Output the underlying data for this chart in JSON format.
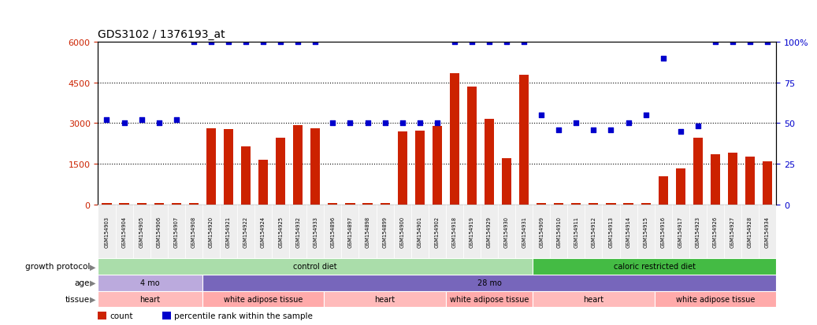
{
  "title": "GDS3102 / 1376193_at",
  "samples": [
    "GSM154903",
    "GSM154904",
    "GSM154905",
    "GSM154906",
    "GSM154907",
    "GSM154908",
    "GSM154920",
    "GSM154921",
    "GSM154922",
    "GSM154924",
    "GSM154925",
    "GSM154932",
    "GSM154933",
    "GSM154896",
    "GSM154897",
    "GSM154898",
    "GSM154899",
    "GSM154900",
    "GSM154901",
    "GSM154902",
    "GSM154918",
    "GSM154919",
    "GSM154929",
    "GSM154930",
    "GSM154931",
    "GSM154909",
    "GSM154910",
    "GSM154911",
    "GSM154912",
    "GSM154913",
    "GSM154914",
    "GSM154915",
    "GSM154916",
    "GSM154917",
    "GSM154923",
    "GSM154926",
    "GSM154927",
    "GSM154928",
    "GSM154934"
  ],
  "bar_values": [
    50,
    60,
    55,
    60,
    55,
    60,
    2820,
    2780,
    2150,
    1650,
    2450,
    2920,
    2800,
    50,
    50,
    50,
    50,
    2680,
    2720,
    2900,
    4830,
    4350,
    3150,
    1700,
    4780,
    50,
    50,
    50,
    50,
    50,
    50,
    50,
    1050,
    1330,
    2450,
    1850,
    1900,
    1750,
    1600
  ],
  "dot_percentiles": [
    52,
    50,
    52,
    50,
    52,
    100,
    100,
    100,
    100,
    100,
    100,
    100,
    100,
    50,
    50,
    50,
    50,
    50,
    50,
    50,
    100,
    100,
    100,
    100,
    100,
    55,
    46,
    50,
    46,
    46,
    50,
    55,
    90,
    45,
    48,
    100,
    100,
    100,
    100
  ],
  "ylim_left": [
    0,
    6000
  ],
  "ylim_right": [
    0,
    100
  ],
  "yticks_left": [
    0,
    1500,
    3000,
    4500,
    6000
  ],
  "yticks_right": [
    0,
    25,
    50,
    75,
    100
  ],
  "bar_color": "#CC2200",
  "dot_color": "#0000CC",
  "groups_gp": [
    {
      "label": "control diet",
      "start": 0,
      "end": 25,
      "color": "#AADDAA"
    },
    {
      "label": "caloric restricted diet",
      "start": 25,
      "end": 39,
      "color": "#44BB44"
    }
  ],
  "groups_age": [
    {
      "label": "4 mo",
      "start": 0,
      "end": 6,
      "color": "#BBAADD"
    },
    {
      "label": "28 mo",
      "start": 6,
      "end": 39,
      "color": "#7766BB"
    }
  ],
  "groups_tissue": [
    {
      "label": "heart",
      "start": 0,
      "end": 6,
      "color": "#FFBBBB"
    },
    {
      "label": "white adipose tissue",
      "start": 6,
      "end": 13,
      "color": "#FFAAAA"
    },
    {
      "label": "heart",
      "start": 13,
      "end": 20,
      "color": "#FFBBBB"
    },
    {
      "label": "white adipose tissue",
      "start": 20,
      "end": 25,
      "color": "#FFAAAA"
    },
    {
      "label": "heart",
      "start": 25,
      "end": 32,
      "color": "#FFBBBB"
    },
    {
      "label": "white adipose tissue",
      "start": 32,
      "end": 39,
      "color": "#FFAAAA"
    }
  ],
  "row_labels": [
    "growth protocol",
    "age",
    "tissue"
  ],
  "legend_items": [
    {
      "color": "#CC2200",
      "label": "count"
    },
    {
      "color": "#0000CC",
      "label": "percentile rank within the sample"
    }
  ]
}
